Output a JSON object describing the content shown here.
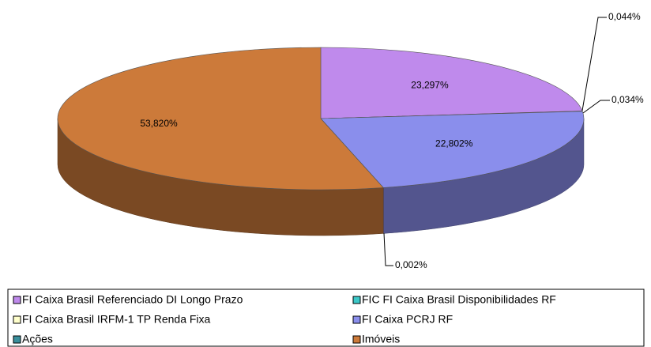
{
  "chart_data": {
    "type": "pie",
    "categories": [
      "FI Caixa Brasil Referenciado DI Longo Prazo",
      "FIC FI Caixa Brasil Disponibilidades RF",
      "FI Caixa Brasil IRFM-1 TP Renda Fixa",
      "FI Caixa PCRJ RF",
      "Ações",
      "Imóveis"
    ],
    "values": [
      23.297,
      0.044,
      0.034,
      22.802,
      0.002,
      53.82
    ],
    "value_labels": [
      "23,297%",
      "0,044%",
      "0,034%",
      "22,802%",
      "0,002%",
      "53,820%"
    ],
    "colors": [
      "#bf8aec",
      "#3cc8c8",
      "#ffffcc",
      "#8a8eec",
      "#3a8f9c",
      "#cc7a3a"
    ],
    "legend": "bottom"
  }
}
